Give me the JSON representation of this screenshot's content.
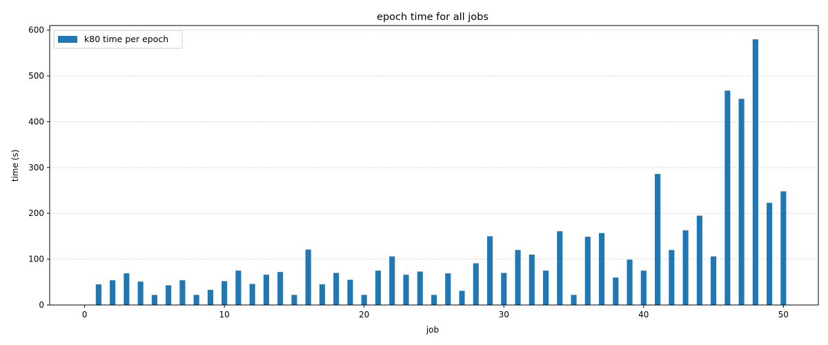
{
  "chart_data": {
    "type": "bar",
    "title": "epoch time for all jobs",
    "xlabel": "job",
    "ylabel": "time (s)",
    "xlim": [
      -2.5,
      52.5
    ],
    "ylim": [
      0,
      610
    ],
    "x_ticks": [
      0,
      10,
      20,
      30,
      40,
      50
    ],
    "y_ticks": [
      0,
      100,
      200,
      300,
      400,
      500,
      600
    ],
    "grid": {
      "axis": "y",
      "style": "dotted",
      "color": "#b0b0b0"
    },
    "legend": {
      "placement": "top-left"
    },
    "series": [
      {
        "name": "k80 time per epoch",
        "color": "#1f77b4",
        "x": [
          1,
          2,
          3,
          4,
          5,
          6,
          7,
          8,
          9,
          10,
          11,
          12,
          13,
          14,
          15,
          16,
          17,
          18,
          19,
          20,
          21,
          22,
          23,
          24,
          25,
          26,
          27,
          28,
          29,
          30,
          31,
          32,
          33,
          34,
          35,
          36,
          37,
          38,
          39,
          40,
          41,
          42,
          43,
          44,
          45,
          46,
          47,
          48,
          49,
          50
        ],
        "values": [
          45,
          54,
          69,
          51,
          22,
          43,
          54,
          22,
          33,
          52,
          75,
          46,
          66,
          72,
          22,
          121,
          45,
          70,
          55,
          22,
          75,
          106,
          66,
          73,
          22,
          69,
          31,
          91,
          150,
          70,
          120,
          110,
          75,
          161,
          22,
          149,
          157,
          60,
          99,
          75,
          286,
          120,
          163,
          195,
          106,
          468,
          450,
          580,
          223,
          248
        ]
      }
    ]
  }
}
